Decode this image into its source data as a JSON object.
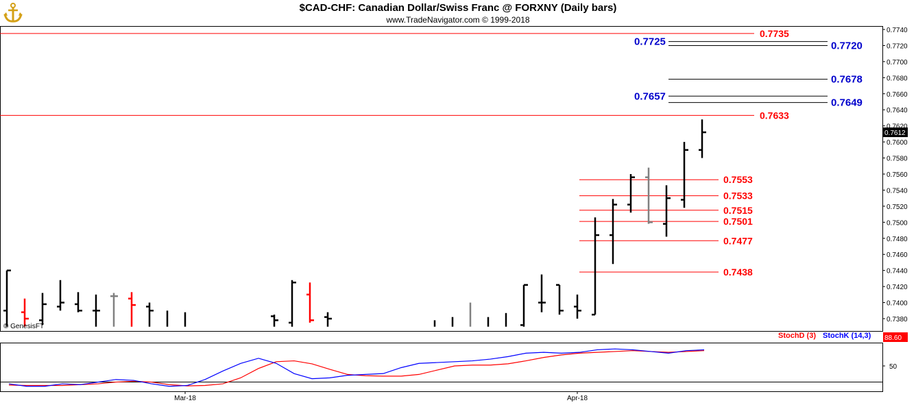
{
  "header": {
    "title": "$CAD-CHF:  Canadian Dollar/Swiss Franc @ FORXNY  (Daily bars)",
    "subtitle": "www.TradeNavigator.com © 1999-2018"
  },
  "colors": {
    "up_bar": "#000000",
    "down_bar": "#ff0000",
    "neutral_bar": "#808080",
    "red_level": "#ff0000",
    "blue_level": "#0000cc",
    "stoch_d": "#ff0000",
    "stoch_k": "#0000ff"
  },
  "chart_data": [
    {
      "type": "ohlc",
      "title": "$CAD-CHF:  Canadian Dollar/Swiss Franc @ FORXNY  (Daily bars)",
      "ylim": [
        0.737,
        0.7745
      ],
      "y_ticks": [
        "0.7740",
        "0.7720",
        "0.7700",
        "0.7680",
        "0.7660",
        "0.7640",
        "0.7620",
        "0.7600",
        "0.7580",
        "0.7560",
        "0.7540",
        "0.7520",
        "0.7500",
        "0.7480",
        "0.7460",
        "0.7440",
        "0.7420",
        "0.7400",
        "0.7380"
      ],
      "last_price_label": "0.7612",
      "x_labels": [
        {
          "label": "Mar-18",
          "bar": 10
        },
        {
          "label": "Apr-18",
          "bar": 32
        }
      ],
      "bar_count": 40,
      "watermark": "© GenesisFT",
      "bars": [
        {
          "i": 0,
          "o": 0.739,
          "h": 0.744,
          "l": 0.737,
          "c": 0.744,
          "color": "black"
        },
        {
          "i": 1,
          "o": 0.7388,
          "h": 0.7405,
          "l": 0.737,
          "c": 0.738,
          "color": "red"
        },
        {
          "i": 2,
          "o": 0.7378,
          "h": 0.7412,
          "l": 0.7372,
          "c": 0.7398,
          "color": "black"
        },
        {
          "i": 3,
          "o": 0.7395,
          "h": 0.7428,
          "l": 0.739,
          "c": 0.74,
          "color": "black"
        },
        {
          "i": 4,
          "o": 0.7398,
          "h": 0.7413,
          "l": 0.7388,
          "c": 0.739,
          "color": "black"
        },
        {
          "i": 5,
          "o": 0.739,
          "h": 0.741,
          "l": 0.737,
          "c": 0.739,
          "color": "black"
        },
        {
          "i": 6,
          "o": 0.7408,
          "h": 0.7412,
          "l": 0.737,
          "c": 0.7408,
          "color": "gray"
        },
        {
          "i": 7,
          "o": 0.7405,
          "h": 0.7413,
          "l": 0.737,
          "c": 0.7397,
          "color": "red"
        },
        {
          "i": 8,
          "o": 0.7395,
          "h": 0.74,
          "l": 0.737,
          "c": 0.739,
          "color": "black"
        },
        {
          "i": 9,
          "o": null,
          "h": 0.739,
          "l": 0.737,
          "c": null,
          "color": "black"
        },
        {
          "i": 10,
          "o": null,
          "h": 0.7388,
          "l": 0.737,
          "c": null,
          "color": "black"
        },
        {
          "i": 15,
          "o": 0.7383,
          "h": 0.7385,
          "l": 0.737,
          "c": 0.7378,
          "color": "black"
        },
        {
          "i": 16,
          "o": 0.7375,
          "h": 0.7428,
          "l": 0.737,
          "c": 0.7425,
          "color": "black"
        },
        {
          "i": 17,
          "o": 0.741,
          "h": 0.7425,
          "l": 0.7375,
          "c": 0.7378,
          "color": "red"
        },
        {
          "i": 18,
          "o": 0.7382,
          "h": 0.7388,
          "l": 0.737,
          "c": 0.738,
          "color": "black"
        },
        {
          "i": 24,
          "o": null,
          "h": 0.7378,
          "l": 0.737,
          "c": null,
          "color": "black"
        },
        {
          "i": 25,
          "o": null,
          "h": 0.7382,
          "l": 0.737,
          "c": null,
          "color": "black"
        },
        {
          "i": 26,
          "o": null,
          "h": 0.74,
          "l": 0.737,
          "c": null,
          "color": "gray"
        },
        {
          "i": 27,
          "o": null,
          "h": 0.7382,
          "l": 0.737,
          "c": null,
          "color": "black"
        },
        {
          "i": 28,
          "o": null,
          "h": 0.7387,
          "l": 0.737,
          "c": null,
          "color": "black"
        },
        {
          "i": 29,
          "o": 0.7372,
          "h": 0.7422,
          "l": 0.737,
          "c": 0.7422,
          "color": "black"
        },
        {
          "i": 30,
          "o": 0.74,
          "h": 0.7435,
          "l": 0.7388,
          "c": 0.74,
          "color": "black"
        },
        {
          "i": 31,
          "o": 0.7422,
          "h": 0.7422,
          "l": 0.7385,
          "c": 0.739,
          "color": "black"
        },
        {
          "i": 32,
          "o": 0.7395,
          "h": 0.741,
          "l": 0.738,
          "c": 0.739,
          "color": "black"
        },
        {
          "i": 33,
          "o": 0.7385,
          "h": 0.7506,
          "l": 0.7385,
          "c": 0.7484,
          "color": "black"
        },
        {
          "i": 34,
          "o": 0.7484,
          "h": 0.7529,
          "l": 0.7448,
          "c": 0.7522,
          "color": "black"
        },
        {
          "i": 35,
          "o": 0.7522,
          "h": 0.756,
          "l": 0.7512,
          "c": 0.7556,
          "color": "black"
        },
        {
          "i": 36,
          "o": 0.7556,
          "h": 0.7568,
          "l": 0.7498,
          "c": 0.75,
          "color": "gray"
        },
        {
          "i": 37,
          "o": 0.7498,
          "h": 0.7546,
          "l": 0.7482,
          "c": 0.753,
          "color": "black"
        },
        {
          "i": 38,
          "o": 0.7528,
          "h": 0.76,
          "l": 0.7518,
          "c": 0.759,
          "color": "black"
        },
        {
          "i": 39,
          "o": 0.759,
          "h": 0.7628,
          "l": 0.758,
          "c": 0.7612,
          "color": "black"
        }
      ],
      "levels": [
        {
          "value": 0.7735,
          "label": "0.7735",
          "color": "red",
          "line": "full"
        },
        {
          "value": 0.7633,
          "label": "0.7633",
          "color": "red",
          "line": "full"
        },
        {
          "value": 0.7553,
          "label": "0.7553",
          "color": "red",
          "line": "short"
        },
        {
          "value": 0.7533,
          "label": "0.7533",
          "color": "red",
          "line": "short"
        },
        {
          "value": 0.7515,
          "label": "0.7515",
          "color": "red",
          "line": "short"
        },
        {
          "value": 0.7501,
          "label": "0.7501",
          "color": "red",
          "line": "short"
        },
        {
          "value": 0.7477,
          "label": "0.7477",
          "color": "red",
          "line": "short"
        },
        {
          "value": 0.7438,
          "label": "0.7438",
          "color": "red",
          "line": "short"
        },
        {
          "value": 0.7725,
          "label": "0.7725",
          "color": "blue",
          "side": "left"
        },
        {
          "value": 0.772,
          "label": "0.7720",
          "color": "blue",
          "side": "right"
        },
        {
          "value": 0.7678,
          "label": "0.7678",
          "color": "blue",
          "side": "right"
        },
        {
          "value": 0.7657,
          "label": "0.7657",
          "color": "blue",
          "side": "left"
        },
        {
          "value": 0.7649,
          "label": "0.7649",
          "color": "blue",
          "side": "right"
        }
      ]
    },
    {
      "type": "line",
      "ylim": [
        0,
        100
      ],
      "y_ticks": [
        "50"
      ],
      "last_value_label": "88.60",
      "series": [
        {
          "name": "StochD (3)",
          "color": "red",
          "values": [
            5,
            4,
            4,
            4,
            6,
            8,
            12,
            14,
            12,
            6,
            3,
            4,
            8,
            22,
            44,
            60,
            62,
            55,
            42,
            30,
            27,
            26,
            26,
            30,
            40,
            50,
            52,
            52,
            55,
            62,
            70,
            76,
            80,
            82,
            84,
            86,
            84,
            82,
            84,
            86
          ]
        },
        {
          "name": "StochK (14,3)",
          "color": "blue",
          "values": [
            8,
            2,
            2,
            8,
            6,
            12,
            18,
            16,
            8,
            2,
            4,
            18,
            38,
            56,
            68,
            56,
            32,
            20,
            22,
            28,
            30,
            32,
            46,
            56,
            58,
            60,
            62,
            66,
            72,
            80,
            82,
            80,
            82,
            88,
            90,
            88,
            84,
            80,
            86,
            88
          ]
        }
      ]
    }
  ]
}
